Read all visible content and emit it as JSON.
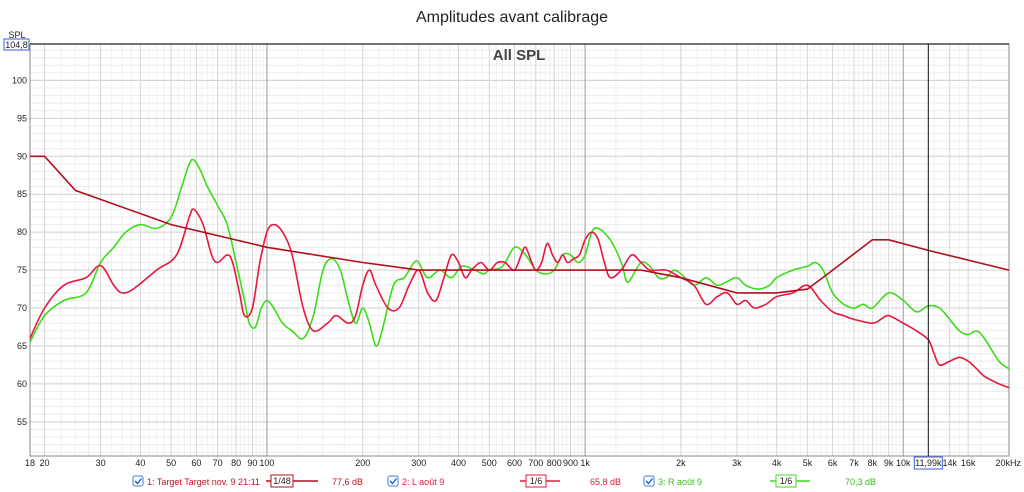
{
  "chart_data": {
    "type": "line",
    "title": "Amplitudes avant calibrage",
    "subtitle": "All SPL",
    "ylabel": "SPL",
    "ymax_label": "104,8",
    "xunit_label": "20kHz",
    "cursor_label": "11,99k",
    "cursor_x": 11990,
    "xscale": "log",
    "xlim": [
      18,
      21500
    ],
    "ylim": [
      50.5,
      104.8
    ],
    "x_ticks": [
      {
        "v": 18,
        "t": "18"
      },
      {
        "v": 20,
        "t": "20"
      },
      {
        "v": 30,
        "t": "30"
      },
      {
        "v": 40,
        "t": "40"
      },
      {
        "v": 50,
        "t": "50"
      },
      {
        "v": 60,
        "t": "60"
      },
      {
        "v": 70,
        "t": "70"
      },
      {
        "v": 80,
        "t": "80"
      },
      {
        "v": 90,
        "t": "90"
      },
      {
        "v": 100,
        "t": "100"
      },
      {
        "v": 200,
        "t": "200"
      },
      {
        "v": 300,
        "t": "300"
      },
      {
        "v": 400,
        "t": "400"
      },
      {
        "v": 500,
        "t": "500"
      },
      {
        "v": 600,
        "t": "600"
      },
      {
        "v": 700,
        "t": "700"
      },
      {
        "v": 800,
        "t": "800"
      },
      {
        "v": 900,
        "t": "900"
      },
      {
        "v": 1000,
        "t": "1k"
      },
      {
        "v": 2000,
        "t": "2k"
      },
      {
        "v": 3000,
        "t": "3k"
      },
      {
        "v": 4000,
        "t": "4k"
      },
      {
        "v": 5000,
        "t": "5k"
      },
      {
        "v": 6000,
        "t": "6k"
      },
      {
        "v": 7000,
        "t": "7k"
      },
      {
        "v": 8000,
        "t": "8k"
      },
      {
        "v": 9000,
        "t": "9k"
      },
      {
        "v": 10000,
        "t": "10k"
      },
      {
        "v": 14000,
        "t": "14k"
      },
      {
        "v": 16000,
        "t": "16k"
      }
    ],
    "y_ticks": [
      55,
      60,
      65,
      70,
      75,
      80,
      85,
      90,
      95,
      100
    ],
    "grid": true,
    "legend_position": "bottom",
    "series": [
      {
        "name": "1: Target Target nov. 9 21:11",
        "color": "#b0101e",
        "smoothing": "1/48",
        "value_label": "77,6 dB",
        "points": [
          [
            18,
            90
          ],
          [
            20,
            90
          ],
          [
            25,
            85.5
          ],
          [
            50,
            81
          ],
          [
            100,
            78
          ],
          [
            200,
            76
          ],
          [
            300,
            75
          ],
          [
            500,
            75
          ],
          [
            1000,
            75
          ],
          [
            1500,
            75
          ],
          [
            2000,
            74
          ],
          [
            3000,
            72
          ],
          [
            4000,
            72
          ],
          [
            5000,
            72.5
          ],
          [
            6000,
            75
          ],
          [
            8000,
            79
          ],
          [
            9000,
            79
          ],
          [
            12000,
            77.6
          ],
          [
            21500,
            75
          ]
        ]
      },
      {
        "name": "2: L août 9",
        "color": "#e8173f",
        "smoothing": "1/6",
        "value_label": "65,8 dB",
        "points": [
          [
            18,
            66
          ],
          [
            20,
            70
          ],
          [
            23,
            73
          ],
          [
            27,
            74
          ],
          [
            30,
            75.6
          ],
          [
            33,
            73
          ],
          [
            35,
            72
          ],
          [
            38,
            72.5
          ],
          [
            45,
            75
          ],
          [
            52,
            77
          ],
          [
            57,
            82
          ],
          [
            59,
            83
          ],
          [
            63,
            81
          ],
          [
            67,
            77
          ],
          [
            70,
            76
          ],
          [
            75,
            77
          ],
          [
            78,
            76
          ],
          [
            82,
            72
          ],
          [
            85,
            69
          ],
          [
            90,
            70
          ],
          [
            95,
            76
          ],
          [
            100,
            80
          ],
          [
            105,
            81
          ],
          [
            112,
            80
          ],
          [
            120,
            77
          ],
          [
            130,
            70
          ],
          [
            140,
            67
          ],
          [
            155,
            68
          ],
          [
            165,
            69
          ],
          [
            180,
            68
          ],
          [
            190,
            69
          ],
          [
            200,
            73
          ],
          [
            210,
            75
          ],
          [
            220,
            73
          ],
          [
            240,
            70
          ],
          [
            260,
            70
          ],
          [
            280,
            73
          ],
          [
            300,
            75
          ],
          [
            320,
            72
          ],
          [
            340,
            71
          ],
          [
            360,
            74
          ],
          [
            380,
            77
          ],
          [
            400,
            76
          ],
          [
            420,
            74
          ],
          [
            440,
            75
          ],
          [
            470,
            76
          ],
          [
            500,
            75
          ],
          [
            530,
            76
          ],
          [
            560,
            76
          ],
          [
            600,
            75
          ],
          [
            630,
            77
          ],
          [
            650,
            78
          ],
          [
            680,
            76
          ],
          [
            700,
            75
          ],
          [
            730,
            76
          ],
          [
            760,
            78.5
          ],
          [
            790,
            77
          ],
          [
            820,
            76
          ],
          [
            850,
            77
          ],
          [
            880,
            76
          ],
          [
            920,
            76.5
          ],
          [
            960,
            77
          ],
          [
            1000,
            79
          ],
          [
            1050,
            80
          ],
          [
            1100,
            79
          ],
          [
            1150,
            76
          ],
          [
            1200,
            74
          ],
          [
            1300,
            75
          ],
          [
            1400,
            77
          ],
          [
            1500,
            76
          ],
          [
            1600,
            75
          ],
          [
            1800,
            75
          ],
          [
            2000,
            74
          ],
          [
            2200,
            73
          ],
          [
            2400,
            70.5
          ],
          [
            2600,
            71.5
          ],
          [
            2800,
            72
          ],
          [
            3000,
            70.5
          ],
          [
            3200,
            71
          ],
          [
            3400,
            70
          ],
          [
            3700,
            70.5
          ],
          [
            4000,
            71.5
          ],
          [
            4500,
            72
          ],
          [
            5000,
            73
          ],
          [
            5500,
            71
          ],
          [
            6000,
            69.5
          ],
          [
            6500,
            69
          ],
          [
            7000,
            68.5
          ],
          [
            8000,
            68
          ],
          [
            8500,
            68.5
          ],
          [
            9000,
            69
          ],
          [
            10000,
            68
          ],
          [
            11000,
            67
          ],
          [
            12000,
            65.8
          ],
          [
            12500,
            64
          ],
          [
            13000,
            62.5
          ],
          [
            14000,
            63
          ],
          [
            15000,
            63.5
          ],
          [
            16000,
            63
          ],
          [
            17000,
            62
          ],
          [
            18000,
            61
          ],
          [
            20000,
            60
          ],
          [
            21500,
            59.5
          ]
        ]
      },
      {
        "name": "3: R août 9",
        "color": "#3ddc1a",
        "smoothing": "1/6",
        "value_label": "70,3 dB",
        "points": [
          [
            18,
            65.5
          ],
          [
            20,
            69
          ],
          [
            23,
            71
          ],
          [
            27,
            72
          ],
          [
            30,
            76
          ],
          [
            33,
            78
          ],
          [
            36,
            80
          ],
          [
            40,
            81
          ],
          [
            45,
            80.5
          ],
          [
            50,
            82
          ],
          [
            54,
            86
          ],
          [
            57,
            89
          ],
          [
            59,
            89.5
          ],
          [
            62,
            88
          ],
          [
            65,
            86
          ],
          [
            70,
            83.5
          ],
          [
            75,
            81
          ],
          [
            80,
            76
          ],
          [
            85,
            71
          ],
          [
            88,
            68
          ],
          [
            92,
            67.5
          ],
          [
            96,
            70
          ],
          [
            100,
            71
          ],
          [
            105,
            70
          ],
          [
            112,
            68
          ],
          [
            120,
            67
          ],
          [
            130,
            66
          ],
          [
            140,
            69
          ],
          [
            150,
            75
          ],
          [
            160,
            76.5
          ],
          [
            170,
            75
          ],
          [
            180,
            71
          ],
          [
            190,
            68
          ],
          [
            200,
            70
          ],
          [
            210,
            68
          ],
          [
            220,
            65
          ],
          [
            230,
            67
          ],
          [
            250,
            73
          ],
          [
            270,
            74
          ],
          [
            290,
            76
          ],
          [
            300,
            76
          ],
          [
            320,
            74
          ],
          [
            350,
            75
          ],
          [
            380,
            74
          ],
          [
            410,
            75.5
          ],
          [
            450,
            75
          ],
          [
            480,
            74.5
          ],
          [
            500,
            75
          ],
          [
            550,
            75.5
          ],
          [
            600,
            78
          ],
          [
            650,
            77
          ],
          [
            700,
            75
          ],
          [
            750,
            74.5
          ],
          [
            800,
            75
          ],
          [
            850,
            77
          ],
          [
            900,
            77
          ],
          [
            950,
            76
          ],
          [
            1000,
            77
          ],
          [
            1050,
            80
          ],
          [
            1100,
            80.5
          ],
          [
            1200,
            79
          ],
          [
            1300,
            76
          ],
          [
            1350,
            73.5
          ],
          [
            1400,
            74
          ],
          [
            1500,
            76
          ],
          [
            1600,
            75.5
          ],
          [
            1700,
            74
          ],
          [
            1800,
            74
          ],
          [
            1900,
            75
          ],
          [
            2000,
            74.5
          ],
          [
            2200,
            73
          ],
          [
            2400,
            74
          ],
          [
            2600,
            73
          ],
          [
            2800,
            73.5
          ],
          [
            3000,
            74
          ],
          [
            3200,
            73
          ],
          [
            3500,
            72.5
          ],
          [
            3800,
            73
          ],
          [
            4000,
            74
          ],
          [
            4500,
            75
          ],
          [
            5000,
            75.5
          ],
          [
            5300,
            76
          ],
          [
            5600,
            75
          ],
          [
            6000,
            72
          ],
          [
            6500,
            70.5
          ],
          [
            7000,
            70
          ],
          [
            7500,
            70.5
          ],
          [
            8000,
            70
          ],
          [
            9000,
            72
          ],
          [
            10000,
            71
          ],
          [
            11000,
            69.5
          ],
          [
            12000,
            70.3
          ],
          [
            13000,
            70
          ],
          [
            14000,
            68.5
          ],
          [
            15000,
            67
          ],
          [
            16000,
            66.5
          ],
          [
            17000,
            67
          ],
          [
            18000,
            66
          ],
          [
            20000,
            63
          ],
          [
            21500,
            62
          ]
        ]
      }
    ]
  },
  "legend": {
    "items": [
      {
        "label": "1: Target Target nov. 9 21:11",
        "smoothing": "1/48",
        "value": "77,6 dB",
        "color": "#b0101e",
        "label_color": "#c1121f",
        "value_color": "#c1121f"
      },
      {
        "label": "2: L août 9",
        "smoothing": "1/6",
        "value": "65,8 dB",
        "color": "#e8173f",
        "label_color": "#e8173f",
        "value_color": "#e8173f"
      },
      {
        "label": "3: R août 9",
        "smoothing": "1/6",
        "value": "70,3 dB",
        "color": "#3ddc1a",
        "label_color": "#33c21a",
        "value_color": "#33c21a"
      }
    ]
  }
}
